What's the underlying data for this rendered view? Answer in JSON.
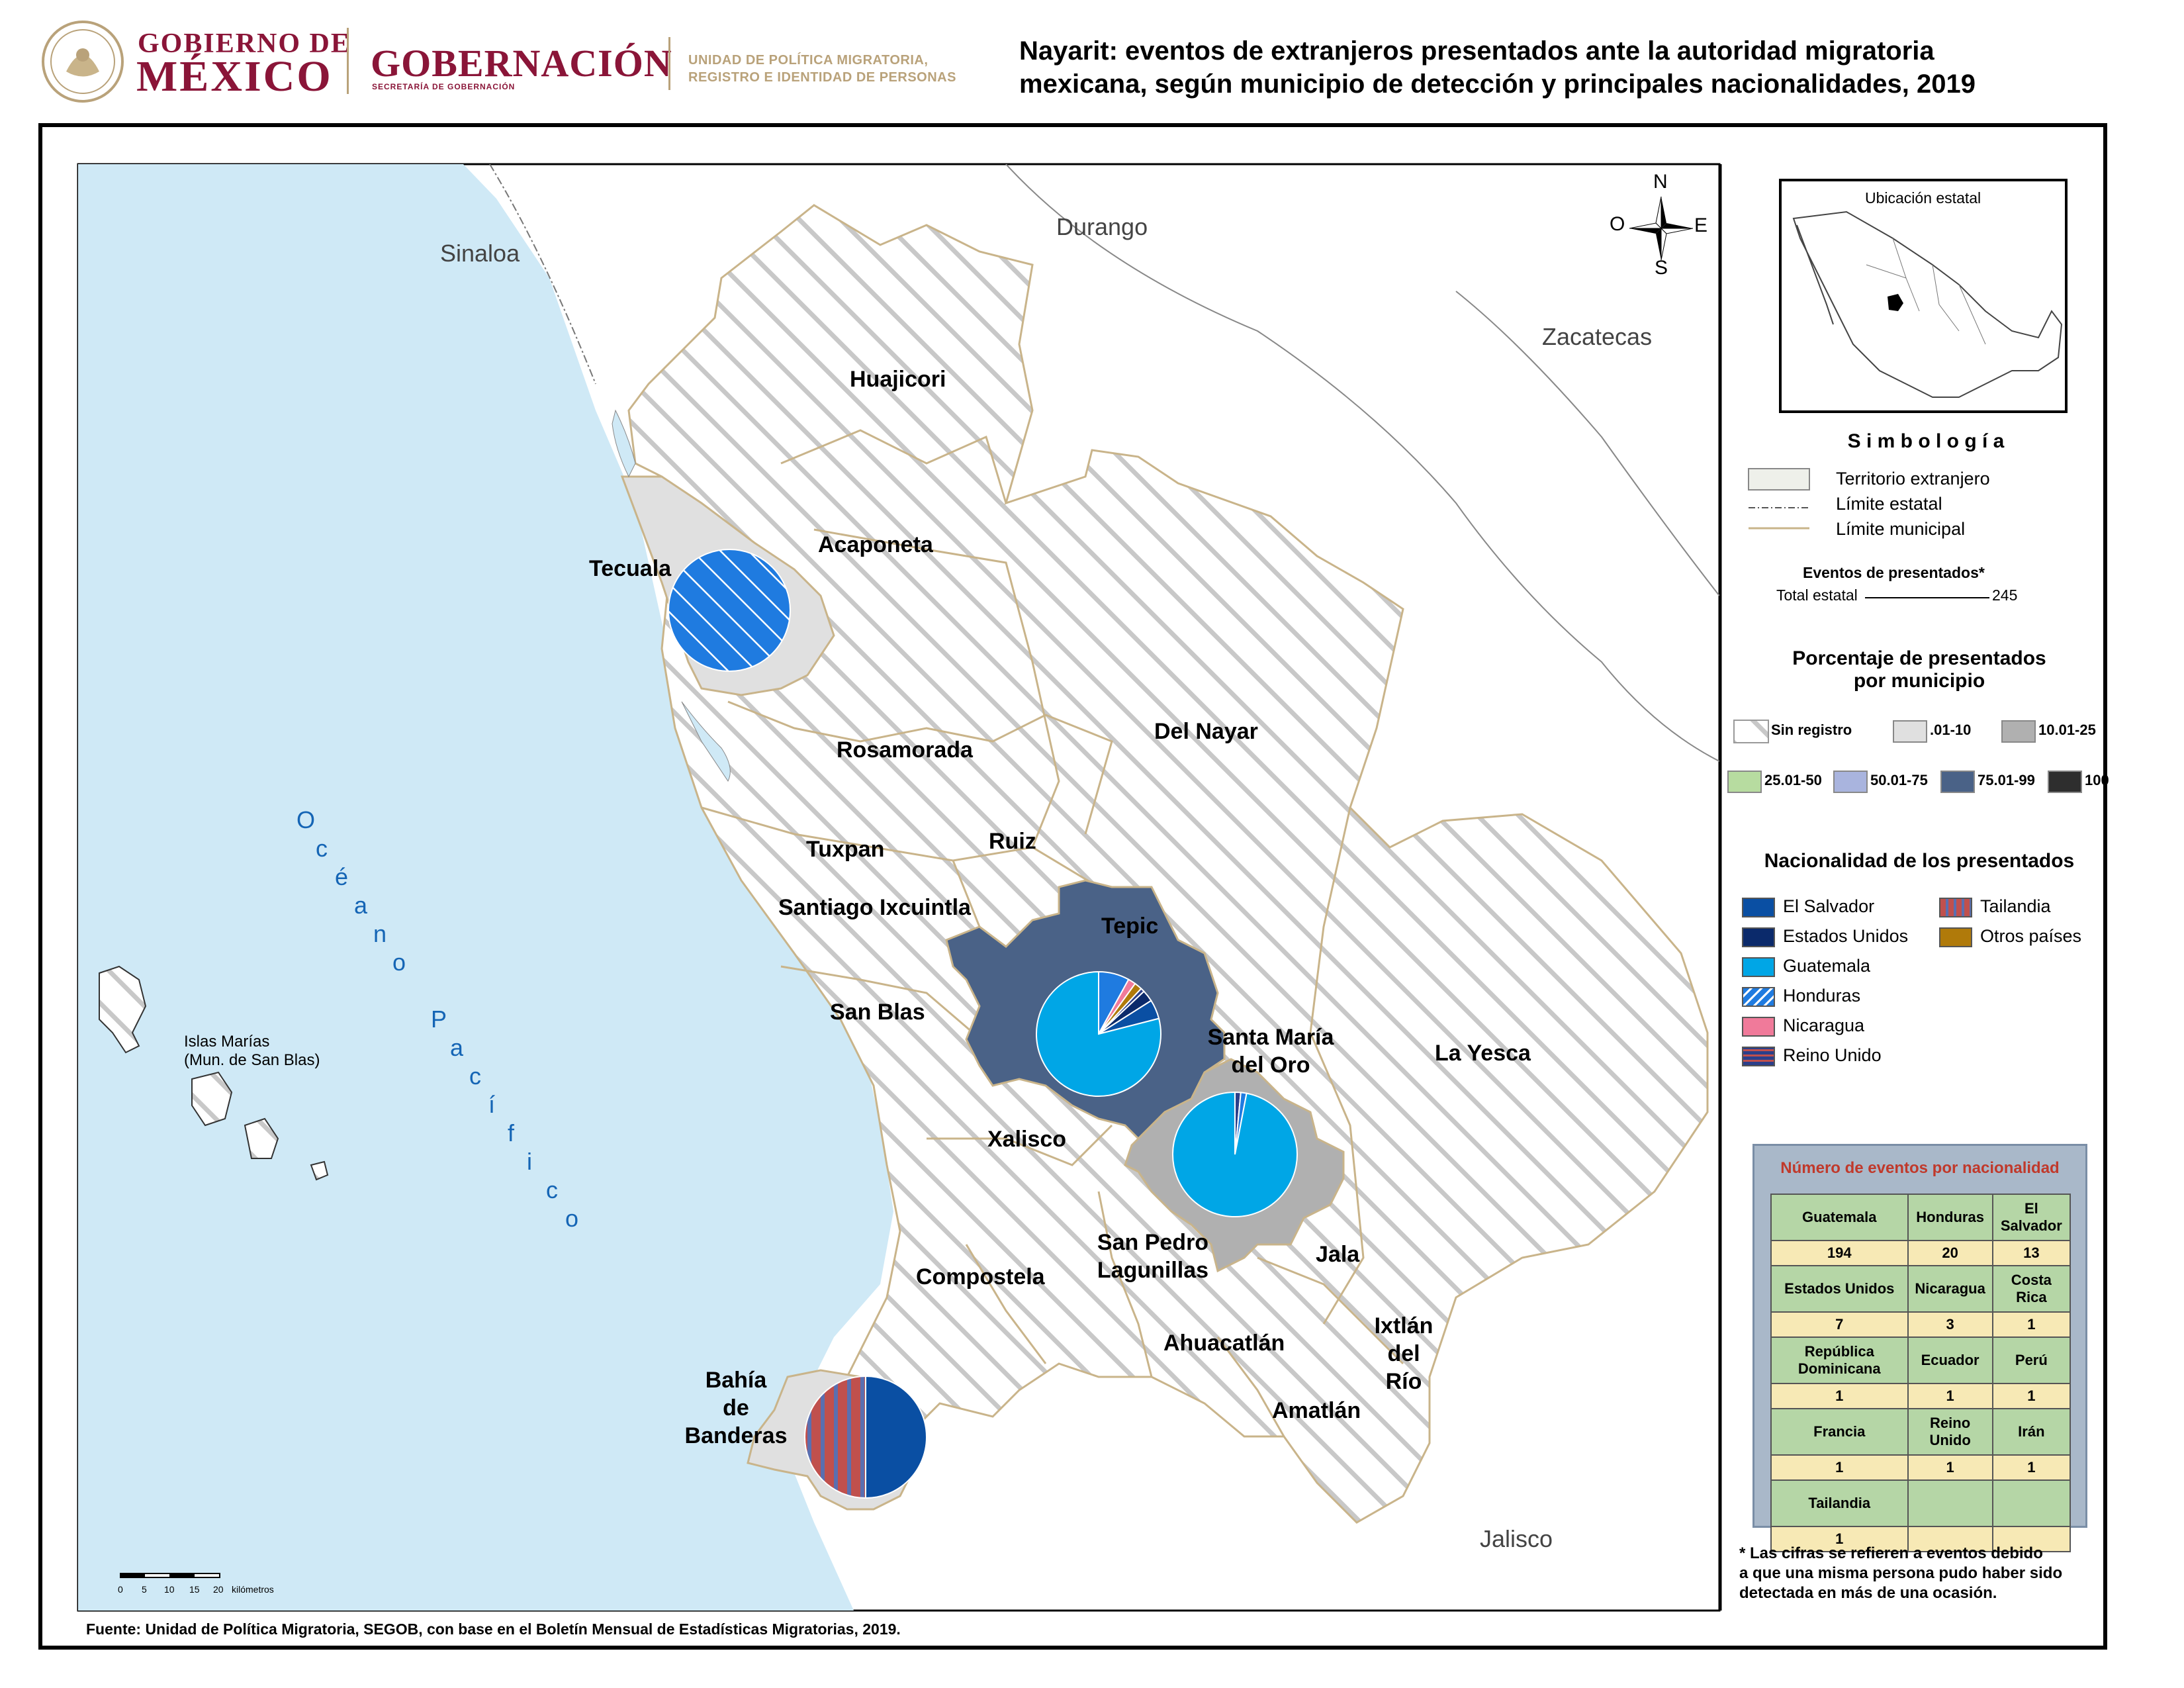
{
  "header": {
    "gobierno_line1": "GOBIERNO DE",
    "gobierno_line2": "MÉXICO",
    "gobernacion": "GOBERNACIÓN",
    "gobernacion_sub": "SECRETARÍA DE GOBERNACIÓN",
    "unidad_line1": "UNIDAD DE POLÍTICA MIGRATORIA,",
    "unidad_line2": "REGISTRO E IDENTIDAD DE PERSONAS",
    "title_line1": "Nayarit: eventos de extranjeros presentados ante la autoridad migratoria",
    "title_line2": "mexicana, según municipio de detección y principales nacionalidades, 2019"
  },
  "map": {
    "states": [
      "Sinaloa",
      "Durango",
      "Zacatecas",
      "Jalisco"
    ],
    "ocean_letters": [
      "O",
      "c",
      "é",
      "a",
      "n",
      "o",
      " ",
      "P",
      "a",
      "c",
      "í",
      "f",
      "i",
      "c",
      "o"
    ],
    "islands_label_1": "Islas Marías",
    "islands_label_2": "(Mun. de San Blas)",
    "compass": {
      "n": "N",
      "s": "S",
      "e": "E",
      "w": "O"
    },
    "municipalities": {
      "huajicori": "Huajicori",
      "acaponeta": "Acaponeta",
      "tecuala": "Tecuala",
      "rosamorada": "Rosamorada",
      "del_nayar": "Del Nayar",
      "tuxpan": "Tuxpan",
      "ruiz": "Ruiz",
      "santiago": "Santiago Ixcuintla",
      "tepic": "Tepic",
      "san_blas": "San Blas",
      "santa_maria_1": "Santa María",
      "santa_maria_2": "del Oro",
      "la_yesca": "La Yesca",
      "xalisco": "Xalisco",
      "compostela": "Compostela",
      "san_pedro_1": "San Pedro",
      "san_pedro_2": "Lagunillas",
      "jala": "Jala",
      "ahuacatlan": "Ahuacatlán",
      "ixtlan_1": "Ixtlán",
      "ixtlan_2": "del",
      "ixtlan_3": "Río",
      "amatlan": "Amatlán",
      "bahia_1": "Bahía",
      "bahia_2": "de",
      "bahia_3": "Banderas"
    },
    "scale": {
      "ticks": [
        "0",
        "5",
        "10",
        "15",
        "20"
      ],
      "unit": "kilómetros"
    }
  },
  "legend": {
    "inset_title": "Ubicación estatal",
    "simbologia": "S i m b o l o g í a",
    "territorio": "Territorio extranjero",
    "limite_estatal": "Límite estatal",
    "limite_municipal": "Límite municipal",
    "eventos_title": "Eventos de presentados*",
    "total_label": "Total estatal",
    "total_value": "245",
    "porcentaje_1": "Porcentaje de presentados",
    "porcentaje_2": "por municipio",
    "classes": [
      {
        "label": "Sin registro",
        "color": "hatch"
      },
      {
        "label": ".01-10",
        "color": "#e0e0e0"
      },
      {
        "label": "10.01-25",
        "color": "#b0b0b0"
      },
      {
        "label": "25.01-50",
        "color": "#b7dca0"
      },
      {
        "label": "50.01-75",
        "color": "#a9b4de"
      },
      {
        "label": "75.01-99",
        "color": "#4a6287"
      },
      {
        "label": "100",
        "color": "#2e2e2e"
      }
    ],
    "nacionalidad_title": "Nacionalidad de los presentados",
    "nationalities": [
      {
        "label": "El Salvador",
        "color": "#0a4fa3"
      },
      {
        "label": "Estados Unidos",
        "color": "#0b2a6b"
      },
      {
        "label": "Guatemala",
        "color": "#00a6e6"
      },
      {
        "label": "Honduras",
        "color": "#1f7be0"
      },
      {
        "label": "Nicaragua",
        "color": "#f07a9a"
      },
      {
        "label": "Reino Unido",
        "color": "#2b3f8a"
      },
      {
        "label": "Tailandia",
        "color": "#c0504d"
      },
      {
        "label": "Otros países",
        "color": "#b07a0a"
      }
    ]
  },
  "table": {
    "title": "Número de eventos por nacionalidad",
    "rows": [
      {
        "h": [
          "Guatemala",
          "Honduras",
          "El Salvador"
        ],
        "v": [
          "194",
          "20",
          "13"
        ]
      },
      {
        "h": [
          "Estados Unidos",
          "Nicaragua",
          "Costa Rica"
        ],
        "v": [
          "7",
          "3",
          "1"
        ]
      },
      {
        "h": [
          "República Dominicana",
          "Ecuador",
          "Perú"
        ],
        "v": [
          "1",
          "1",
          "1"
        ]
      },
      {
        "h": [
          "Francia",
          "Reino Unido",
          "Irán"
        ],
        "v": [
          "1",
          "1",
          "1"
        ]
      },
      {
        "h": [
          "Tailandia",
          "",
          ""
        ],
        "v": [
          "1",
          "",
          ""
        ]
      }
    ]
  },
  "note_line1": "* Las cifras se refieren a eventos debido",
  "note_line2": "a que una misma persona pudo haber sido",
  "note_line3": "detectada en más de una ocasión.",
  "fuente": "Fuente: Unidad de Política Migratoria, SEGOB, con base en el Boletín Mensual de Estadísticas Migratorias, 2019."
}
